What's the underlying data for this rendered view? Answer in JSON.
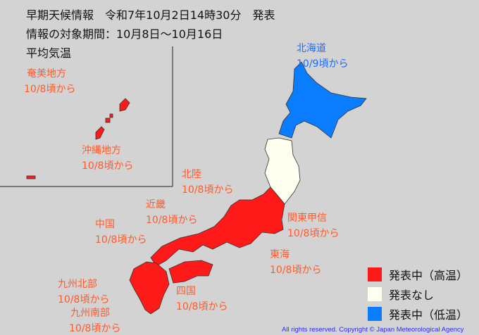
{
  "header": {
    "line1": "早期天候情報　令和7年10月2日14時30分　発表",
    "line2": "情報の対象期間：10月8日～10月16日",
    "line3": "平均気温"
  },
  "regions": [
    {
      "name": "北海道",
      "date": "10/9頃から",
      "status": "low"
    },
    {
      "name": "奄美地方",
      "date": "10/8頃から",
      "status": "high"
    },
    {
      "name": "沖縄地方",
      "date": "10/8頃から",
      "status": "high"
    },
    {
      "name": "北陸",
      "date": "10/8頃から",
      "status": "high"
    },
    {
      "name": "近畿",
      "date": "10/8頃から",
      "status": "high"
    },
    {
      "name": "中国",
      "date": "10/8頃から",
      "status": "high"
    },
    {
      "name": "関東甲信",
      "date": "10/8頃から",
      "status": "high"
    },
    {
      "name": "東海",
      "date": "10/8頃から",
      "status": "high"
    },
    {
      "name": "九州北部",
      "date": "10/8頃から",
      "status": "high"
    },
    {
      "name": "四国",
      "date": "10/8頃から",
      "status": "high"
    },
    {
      "name": "九州南部",
      "date": "10/8頃から",
      "status": "high"
    }
  ],
  "tohoku_status": "none",
  "legend": [
    {
      "label": "発表中（高温）",
      "color": "#ff1a1a"
    },
    {
      "label": "発表なし",
      "color": "#fffff0"
    },
    {
      "label": "発表中（低温）",
      "color": "#0a7dff"
    }
  ],
  "copyright": "All rights reserved. Copyright © Japan Meteorological Agency"
}
